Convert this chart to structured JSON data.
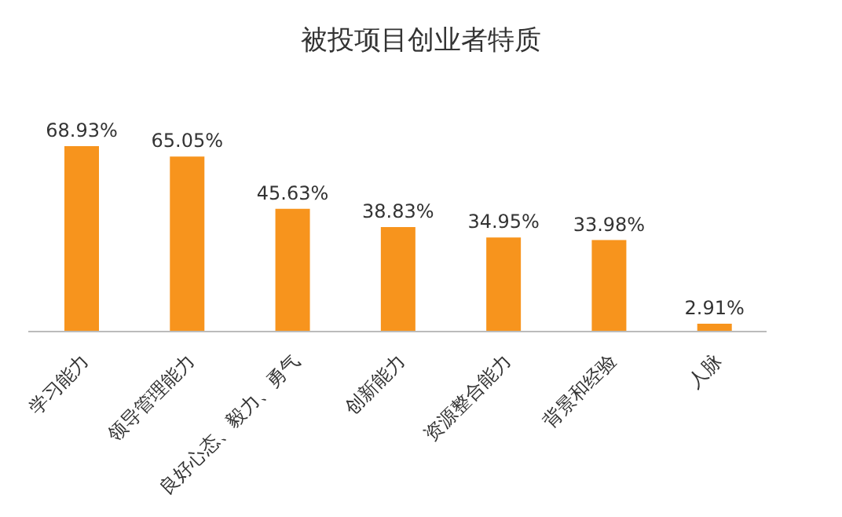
{
  "chart_data": {
    "type": "bar",
    "title": "被投项目创业者特质",
    "categories": [
      "学习能力",
      "领导管理能力",
      "良好心态、毅力、勇气",
      "创新能力",
      "资源整合能力",
      "背景和经验",
      "人脉"
    ],
    "values": [
      68.93,
      65.05,
      45.63,
      38.83,
      34.95,
      33.98,
      2.91
    ],
    "value_labels": [
      "68.93%",
      "65.05%",
      "45.63%",
      "38.83%",
      "34.95%",
      "33.98%",
      "2.91%"
    ],
    "color": "#f7941d",
    "grid": false,
    "legend": false
  }
}
